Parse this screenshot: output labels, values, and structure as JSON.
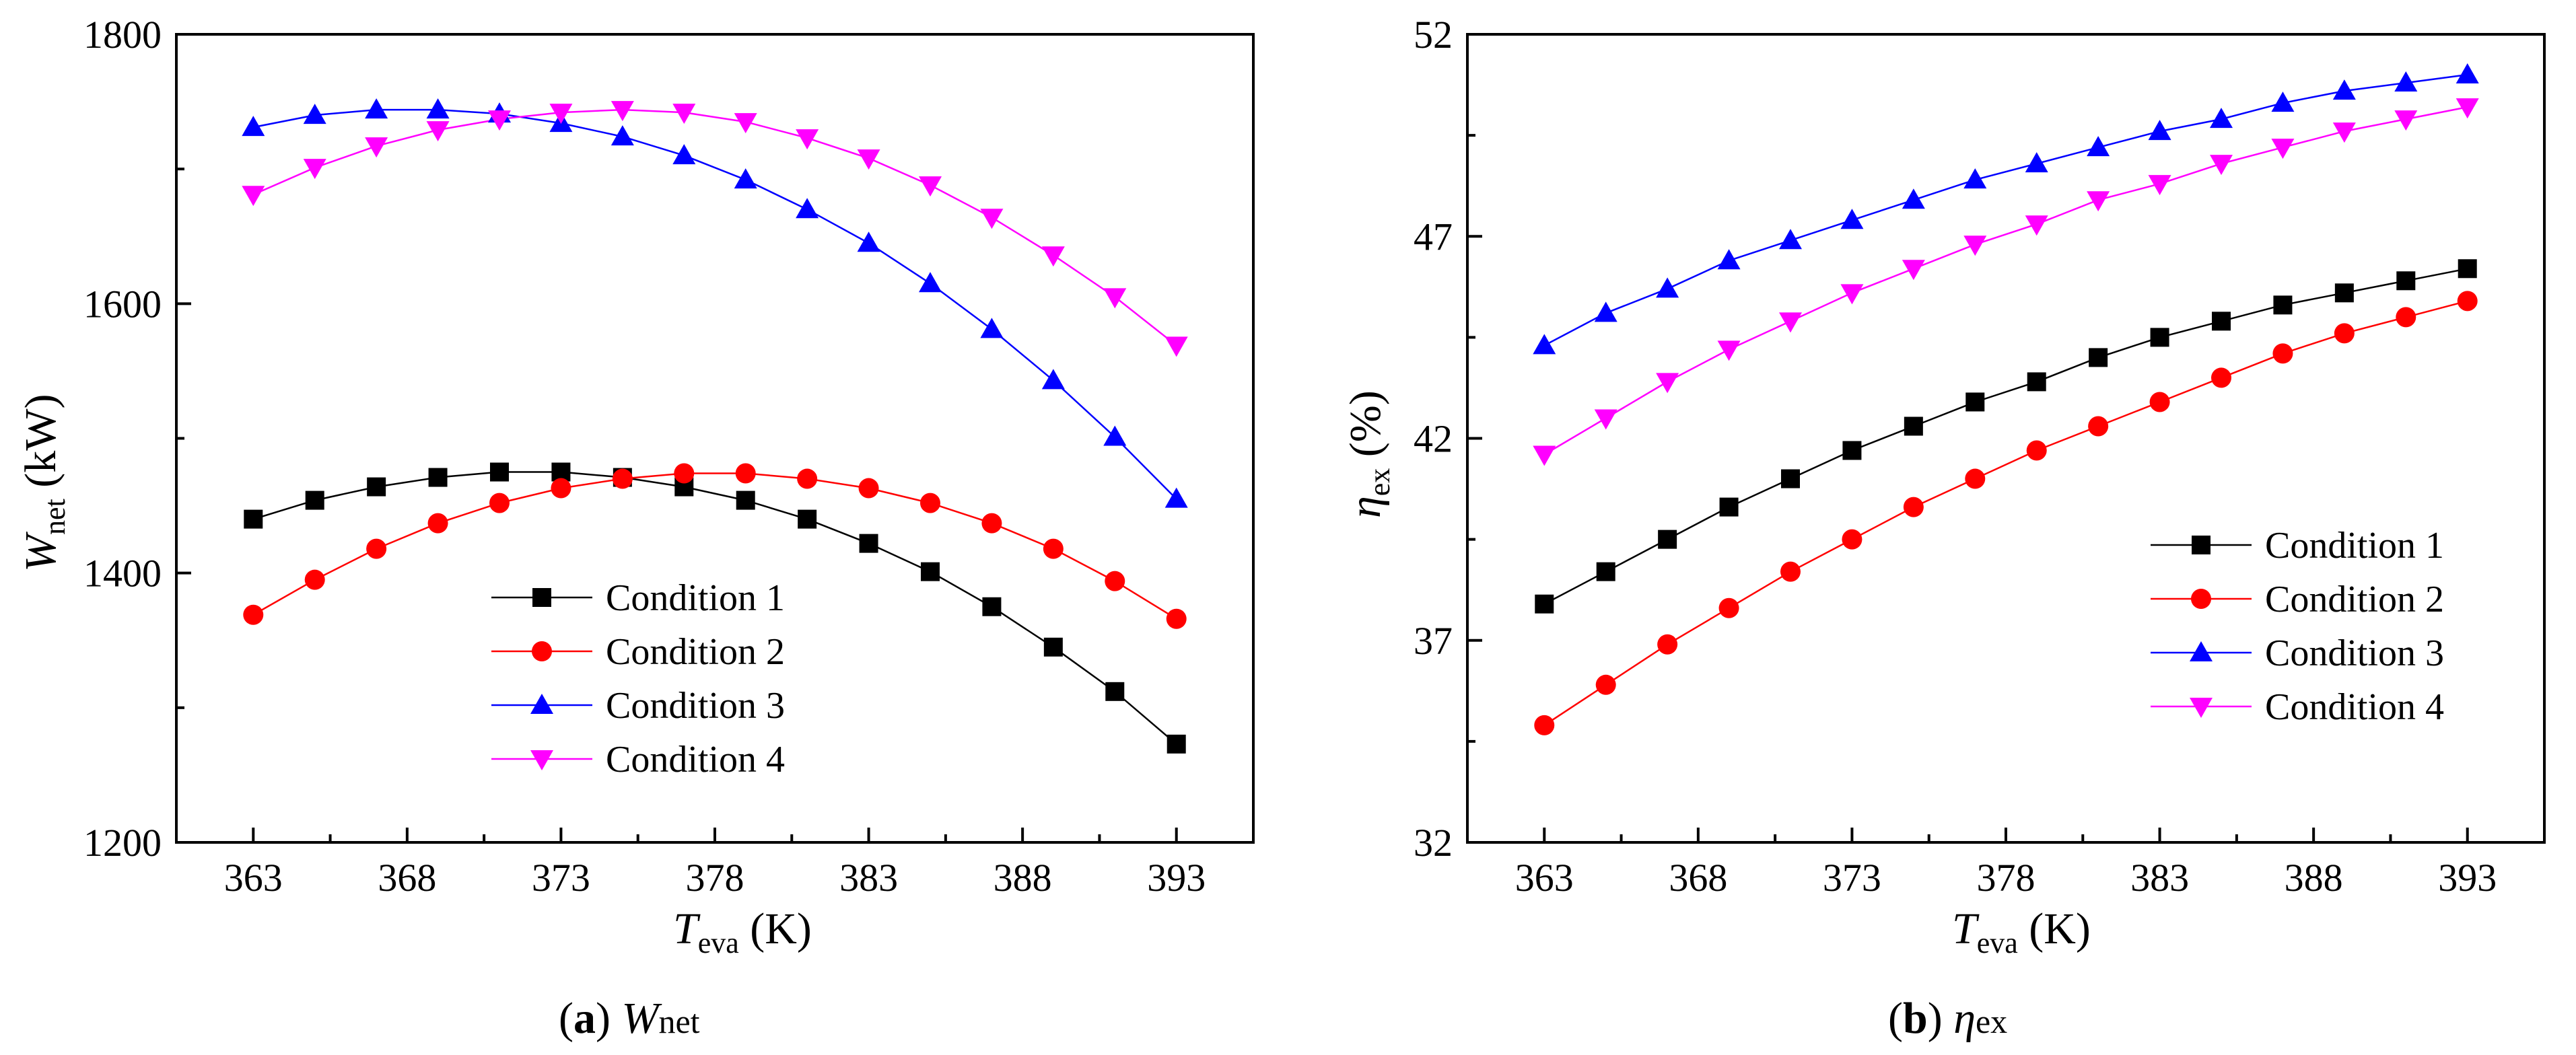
{
  "colors": {
    "condition_1": "#000000",
    "condition_2": "#ff0000",
    "condition_3": "#0000ff",
    "condition_4": "#ff00ff"
  },
  "chart_data": [
    {
      "type": "line",
      "title": "",
      "caption": {
        "label": "a",
        "symbol": "W",
        "subscript": "net"
      },
      "xlabel": {
        "symbol": "T",
        "subscript": "eva",
        "unit": "(K)"
      },
      "ylabel": {
        "symbol": "W",
        "subscript": "net",
        "unit": "(kW)"
      },
      "xlim": [
        360.5,
        395.5
      ],
      "ylim": [
        1200,
        1800
      ],
      "xticks": [
        363,
        368,
        373,
        378,
        383,
        388,
        393
      ],
      "yticks": [
        1200,
        1400,
        1600,
        1800
      ],
      "x": [
        363,
        365,
        367,
        369,
        371,
        373,
        375,
        377,
        379,
        381,
        383,
        385,
        387,
        389,
        391,
        393
      ],
      "legend_position": "lower-left",
      "series": [
        {
          "name": "Condition 1",
          "marker": "square",
          "color_key": "condition_1",
          "values": [
            1440,
            1454,
            1464,
            1471,
            1475,
            1475,
            1471,
            1464,
            1454,
            1440,
            1422,
            1401,
            1375,
            1345,
            1312,
            1273
          ]
        },
        {
          "name": "Condition 2",
          "marker": "circle",
          "color_key": "condition_2",
          "values": [
            1369,
            1395,
            1418,
            1437,
            1452,
            1463,
            1470,
            1474,
            1474,
            1470,
            1463,
            1452,
            1437,
            1418,
            1394,
            1366
          ]
        },
        {
          "name": "Condition 3",
          "marker": "triangle-up",
          "color_key": "condition_3",
          "values": [
            1731,
            1740,
            1744,
            1744,
            1741,
            1734,
            1724,
            1710,
            1692,
            1670,
            1645,
            1615,
            1581,
            1543,
            1501,
            1455
          ]
        },
        {
          "name": "Condition 4",
          "marker": "triangle-down",
          "color_key": "condition_4",
          "values": [
            1681,
            1701,
            1717,
            1729,
            1737,
            1742,
            1744,
            1742,
            1735,
            1723,
            1708,
            1688,
            1664,
            1636,
            1605,
            1569
          ]
        }
      ]
    },
    {
      "type": "line",
      "title": "",
      "caption": {
        "label": "b",
        "symbol": "η",
        "subscript": "ex"
      },
      "xlabel": {
        "symbol": "T",
        "subscript": "eva",
        "unit": "(K)"
      },
      "ylabel": {
        "symbol": "η",
        "subscript": "ex",
        "unit": "(%)"
      },
      "xlim": [
        360.5,
        395.5
      ],
      "ylim": [
        32,
        52
      ],
      "xticks": [
        363,
        368,
        373,
        378,
        383,
        388,
        393
      ],
      "yticks": [
        32,
        37,
        42,
        47,
        52
      ],
      "x": [
        363,
        365,
        367,
        369,
        371,
        373,
        375,
        377,
        379,
        381,
        383,
        385,
        387,
        389,
        391,
        393
      ],
      "legend_position": "center-right",
      "series": [
        {
          "name": "Condition 1",
          "marker": "square",
          "color_key": "condition_1",
          "values": [
            37.9,
            38.7,
            39.5,
            40.3,
            41.0,
            41.7,
            42.3,
            42.9,
            43.4,
            44.0,
            44.5,
            44.9,
            45.3,
            45.6,
            45.9,
            46.2
          ]
        },
        {
          "name": "Condition 2",
          "marker": "circle",
          "color_key": "condition_2",
          "values": [
            34.9,
            35.9,
            36.9,
            37.8,
            38.7,
            39.5,
            40.3,
            41.0,
            41.7,
            42.3,
            42.9,
            43.5,
            44.1,
            44.6,
            45.0,
            45.4
          ]
        },
        {
          "name": "Condition 3",
          "marker": "triangle-up",
          "color_key": "condition_3",
          "values": [
            44.3,
            45.1,
            45.7,
            46.4,
            46.9,
            47.4,
            47.9,
            48.4,
            48.8,
            49.2,
            49.6,
            49.9,
            50.3,
            50.6,
            50.8,
            51.0
          ]
        },
        {
          "name": "Condition 4",
          "marker": "triangle-down",
          "color_key": "condition_4",
          "values": [
            41.6,
            42.5,
            43.4,
            44.2,
            44.9,
            45.6,
            46.2,
            46.8,
            47.3,
            47.9,
            48.3,
            48.8,
            49.2,
            49.6,
            49.9,
            50.2
          ]
        }
      ]
    }
  ]
}
